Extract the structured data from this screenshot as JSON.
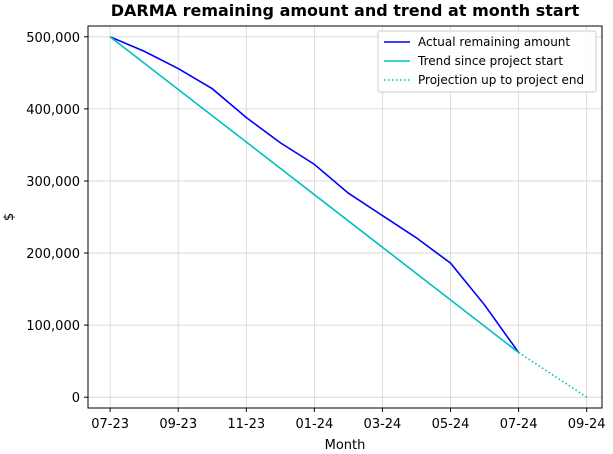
{
  "chart_data": {
    "type": "line",
    "title": "DARMA remaining amount and trend at month start",
    "xlabel": "Month",
    "ylabel": "$",
    "x_tick_labels": [
      "07-23",
      "09-23",
      "11-23",
      "01-24",
      "03-24",
      "05-24",
      "07-24",
      "09-24"
    ],
    "y_tick_labels": [
      "0",
      "100,000",
      "200,000",
      "300,000",
      "400,000",
      "500,000"
    ],
    "y_ticks": [
      0,
      100000,
      200000,
      300000,
      400000,
      500000
    ],
    "ylim": [
      -15000,
      515000
    ],
    "grid": true,
    "legend_position": "top-right",
    "series": [
      {
        "name": "Actual remaining amount",
        "color": "#0000ff",
        "style": "solid",
        "x": [
          "2023-07",
          "2023-08",
          "2023-09",
          "2023-10",
          "2023-11",
          "2023-12",
          "2024-01",
          "2024-02",
          "2024-03",
          "2024-04",
          "2024-05",
          "2024-06",
          "2024-07"
        ],
        "values": [
          500000,
          480000,
          456000,
          428000,
          388000,
          353000,
          323000,
          283000,
          252000,
          221000,
          186000,
          128000,
          62000
        ]
      },
      {
        "name": "Trend since project start",
        "color": "#00bfbf",
        "style": "solid",
        "x": [
          "2023-07",
          "2024-07"
        ],
        "values": [
          500000,
          62000
        ]
      },
      {
        "name": "Projection up to project end",
        "color": "#00bfbf",
        "style": "dotted",
        "x": [
          "2024-07",
          "2024-09"
        ],
        "values": [
          62000,
          0
        ]
      }
    ]
  }
}
